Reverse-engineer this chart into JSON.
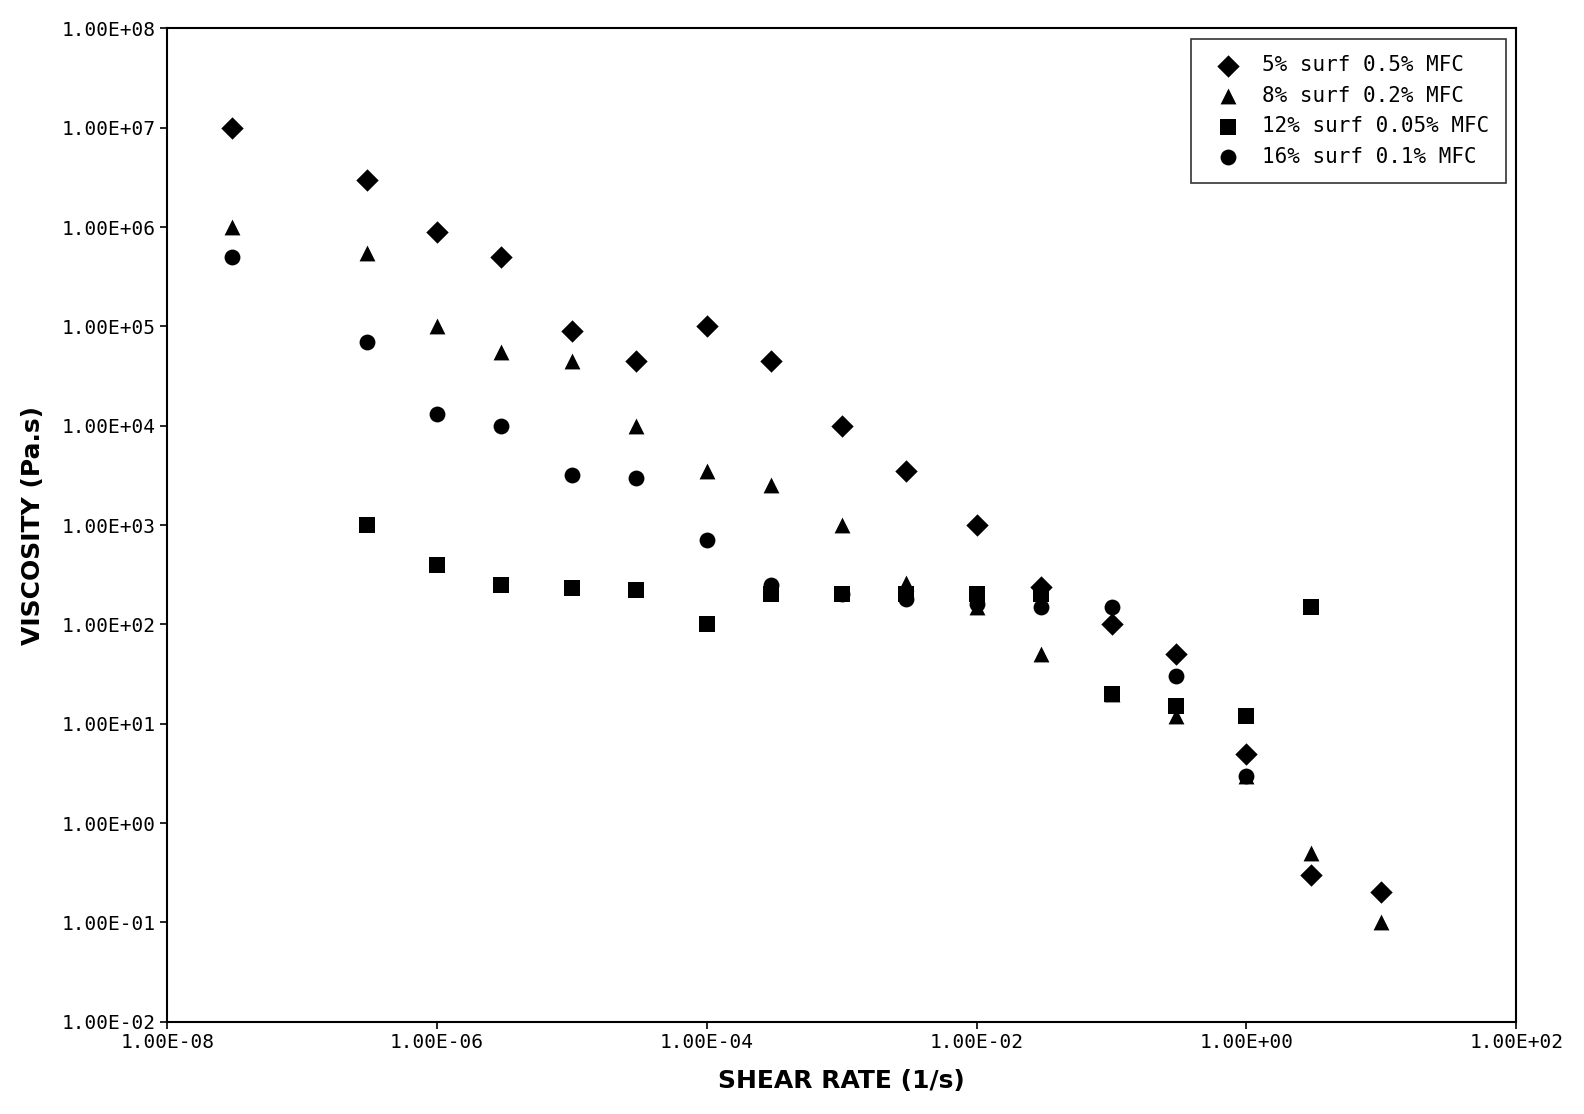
{
  "series": [
    {
      "label": "5% surf 0.5% MFC",
      "marker": "D",
      "color": "black",
      "x": [
        3e-08,
        3e-07,
        1e-06,
        3e-06,
        1e-05,
        3e-05,
        0.0001,
        0.0003,
        0.001,
        0.003,
        0.01,
        0.03,
        0.1,
        0.3,
        1.0,
        3.0,
        10.0
      ],
      "y": [
        10000000.0,
        3000000.0,
        900000.0,
        500000.0,
        90000.0,
        45000.0,
        100000.0,
        45000.0,
        10000.0,
        3500.0,
        1000.0,
        240.0,
        100.0,
        50.0,
        5.0,
        0.3,
        0.2
      ]
    },
    {
      "label": "8% surf 0.2% MFC",
      "marker": "^",
      "color": "black",
      "x": [
        3e-08,
        3e-07,
        1e-06,
        3e-06,
        1e-05,
        3e-05,
        0.0001,
        0.0003,
        0.001,
        0.003,
        0.01,
        0.03,
        0.1,
        0.3,
        1.0,
        3.0,
        10.0
      ],
      "y": [
        1000000.0,
        550000.0,
        100000.0,
        55000.0,
        45000.0,
        10000.0,
        3500.0,
        2500.0,
        1000.0,
        260.0,
        150.0,
        50.0,
        20.0,
        12.0,
        3.0,
        0.5,
        0.1
      ]
    },
    {
      "label": "12% surf 0.05% MFC",
      "marker": "s",
      "color": "black",
      "x": [
        3e-07,
        1e-06,
        3e-06,
        1e-05,
        3e-05,
        0.0001,
        0.0003,
        0.001,
        0.003,
        0.01,
        0.03,
        0.1,
        0.3,
        1.0,
        3.0
      ],
      "y": [
        1000.0,
        400.0,
        250.0,
        230.0,
        220.0,
        100.0,
        200.0,
        200.0,
        200.0,
        200.0,
        200.0,
        20.0,
        15.0,
        12.0,
        150.0
      ]
    },
    {
      "label": "16% surf 0.1% MFC",
      "marker": "o",
      "color": "black",
      "x": [
        3e-08,
        3e-07,
        1e-06,
        3e-06,
        1e-05,
        3e-05,
        0.0001,
        0.0003,
        0.001,
        0.003,
        0.01,
        0.03,
        0.1,
        0.3,
        1.0
      ],
      "y": [
        500000.0,
        70000.0,
        13000.0,
        10000.0,
        3200.0,
        3000.0,
        700.0,
        250.0,
        200.0,
        180.0,
        160.0,
        150.0,
        150.0,
        30.0,
        3.0
      ]
    }
  ],
  "xlabel": "SHEAR RATE (1/s)",
  "ylabel": "VISCOSITY (Pa.s)",
  "xlim_log": [
    -8,
    2
  ],
  "ylim_log": [
    -2,
    8
  ],
  "xtick_exps": [
    -8,
    -6,
    -4,
    -2,
    0,
    2
  ],
  "ytick_exps": [
    -2,
    -1,
    0,
    1,
    2,
    3,
    4,
    5,
    6,
    7,
    8
  ],
  "background_color": "#ffffff",
  "marker_size": 130,
  "legend_fontsize": 15,
  "axis_label_fontsize": 18,
  "tick_fontsize": 14
}
